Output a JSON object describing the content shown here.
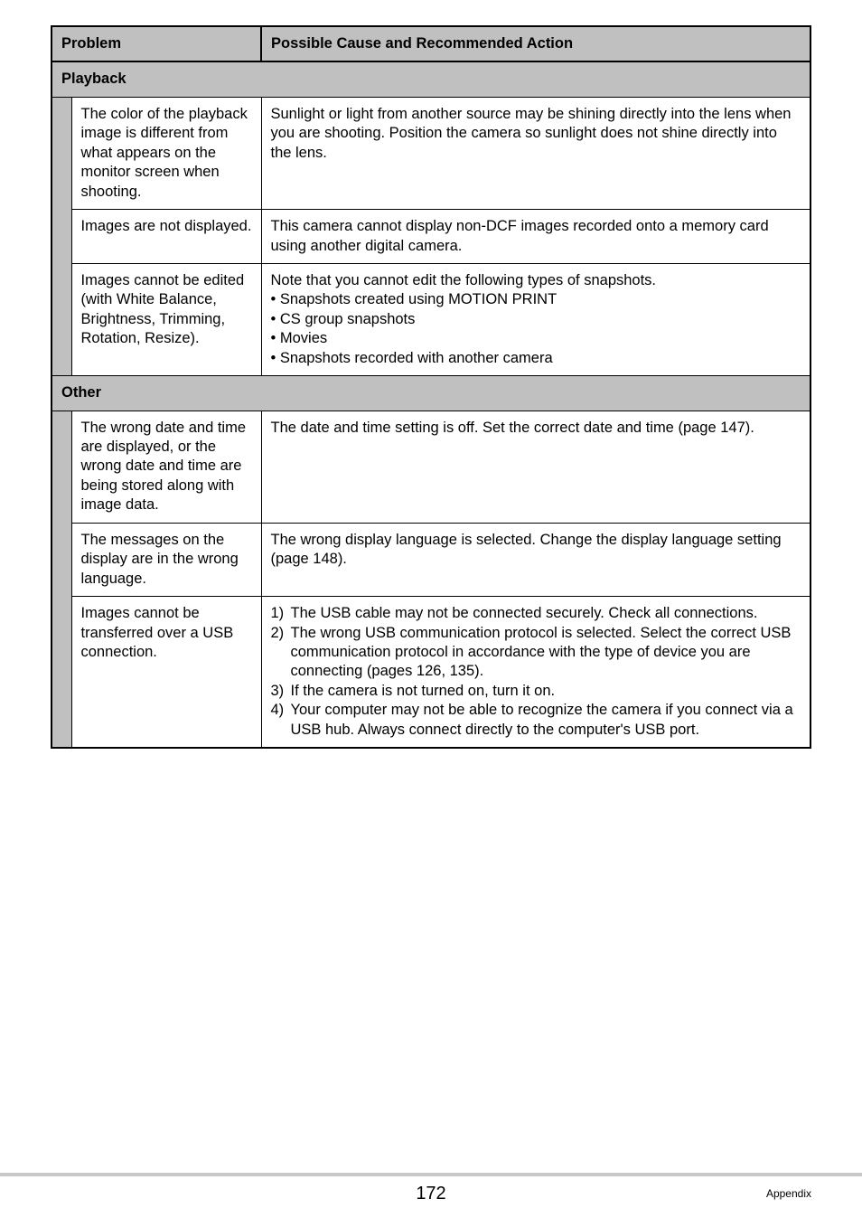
{
  "headers": {
    "problem": "Problem",
    "action": "Possible Cause and Recommended Action"
  },
  "sections": {
    "playback": {
      "title": "Playback",
      "rows": [
        {
          "problem": "The color of the playback image is different from what appears on the monitor screen when shooting.",
          "action_text": "Sunlight or light from another source may be shining directly into the lens when you are shooting. Position the camera so sunlight does not shine directly into the lens."
        },
        {
          "problem": "Images are not displayed.",
          "action_text": "This camera cannot display non-DCF images recorded onto a memory card using another digital camera."
        },
        {
          "problem": "Images cannot be edited (with White Balance, Brightness, Trimming, Rotation, Resize).",
          "action_intro": "Note that you cannot edit the following types of snapshots.",
          "action_bullets": [
            "Snapshots created using MOTION PRINT",
            "CS group snapshots",
            "Movies",
            "Snapshots recorded with another camera"
          ]
        }
      ]
    },
    "other": {
      "title": "Other",
      "rows": [
        {
          "problem": "The wrong date and time are displayed, or the wrong date and time are being stored along with image data.",
          "action_text": "The date and time setting is off. Set the correct date and time (page 147)."
        },
        {
          "problem": "The messages on the display are in the wrong language.",
          "action_text": "The wrong display language is selected. Change the display language setting (page 148)."
        },
        {
          "problem": "Images cannot be transferred over a USB connection.",
          "action_numbered": [
            {
              "num": "1)",
              "text": "The USB cable may not be connected securely. Check all connections."
            },
            {
              "num": "2)",
              "text": "The wrong USB communication protocol is selected. Select the correct USB communication protocol in accordance with the type of device you are connecting (pages 126, 135)."
            },
            {
              "num": "3)",
              "text": "If the camera is not turned on, turn it on."
            },
            {
              "num": "4)",
              "text": "Your computer may not be able to recognize the camera if you connect via a USB hub. Always connect directly to the computer's USB port."
            }
          ]
        }
      ]
    }
  },
  "footer": {
    "page_number": "172",
    "label": "Appendix"
  }
}
